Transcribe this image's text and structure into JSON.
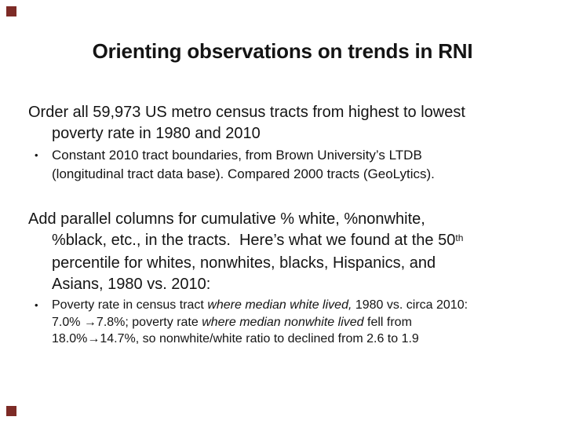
{
  "slide": {
    "title": "Orienting observations on trends in RNI",
    "decor": {
      "corner_mark_color": "#7d2b26",
      "text_color": "#141414",
      "background_color": "#ffffff"
    },
    "para1": {
      "line1": "Order all 59,973 US metro census tracts from highest to lowest",
      "line2": "poverty rate in 1980 and 2010"
    },
    "bullet1": {
      "glyph": "•",
      "line1": "Constant 2010 tract boundaries, from Brown University’s LTDB",
      "line2": "(longitudinal tract data base). Compared 2000 tracts (GeoLytics)."
    },
    "para2": {
      "line1": "Add parallel columns for cumulative % white, %nonwhite,",
      "line2_text": "%black, etc., in the tracts.  Here’s what we found at the 50",
      "line2_sup": "th",
      "line3": "percentile for whites, nonwhites, blacks, Hispanics, and",
      "line4": "Asians, 1980 vs. 2010:"
    },
    "bullet2": {
      "glyph": "•",
      "l1_a": "Poverty rate in census tract ",
      "l1_b_italic": "where median white lived,",
      "l1_c": " 1980 vs. circa 2010:",
      "l2_a": "7.0% →7.8%; poverty rate ",
      "l2_b_italic": "where median nonwhite lived",
      "l2_c": " fell from",
      "l3": "18.0%→14.7%, so nonwhite/white ratio to declined from 2.6 to 1.9"
    }
  }
}
